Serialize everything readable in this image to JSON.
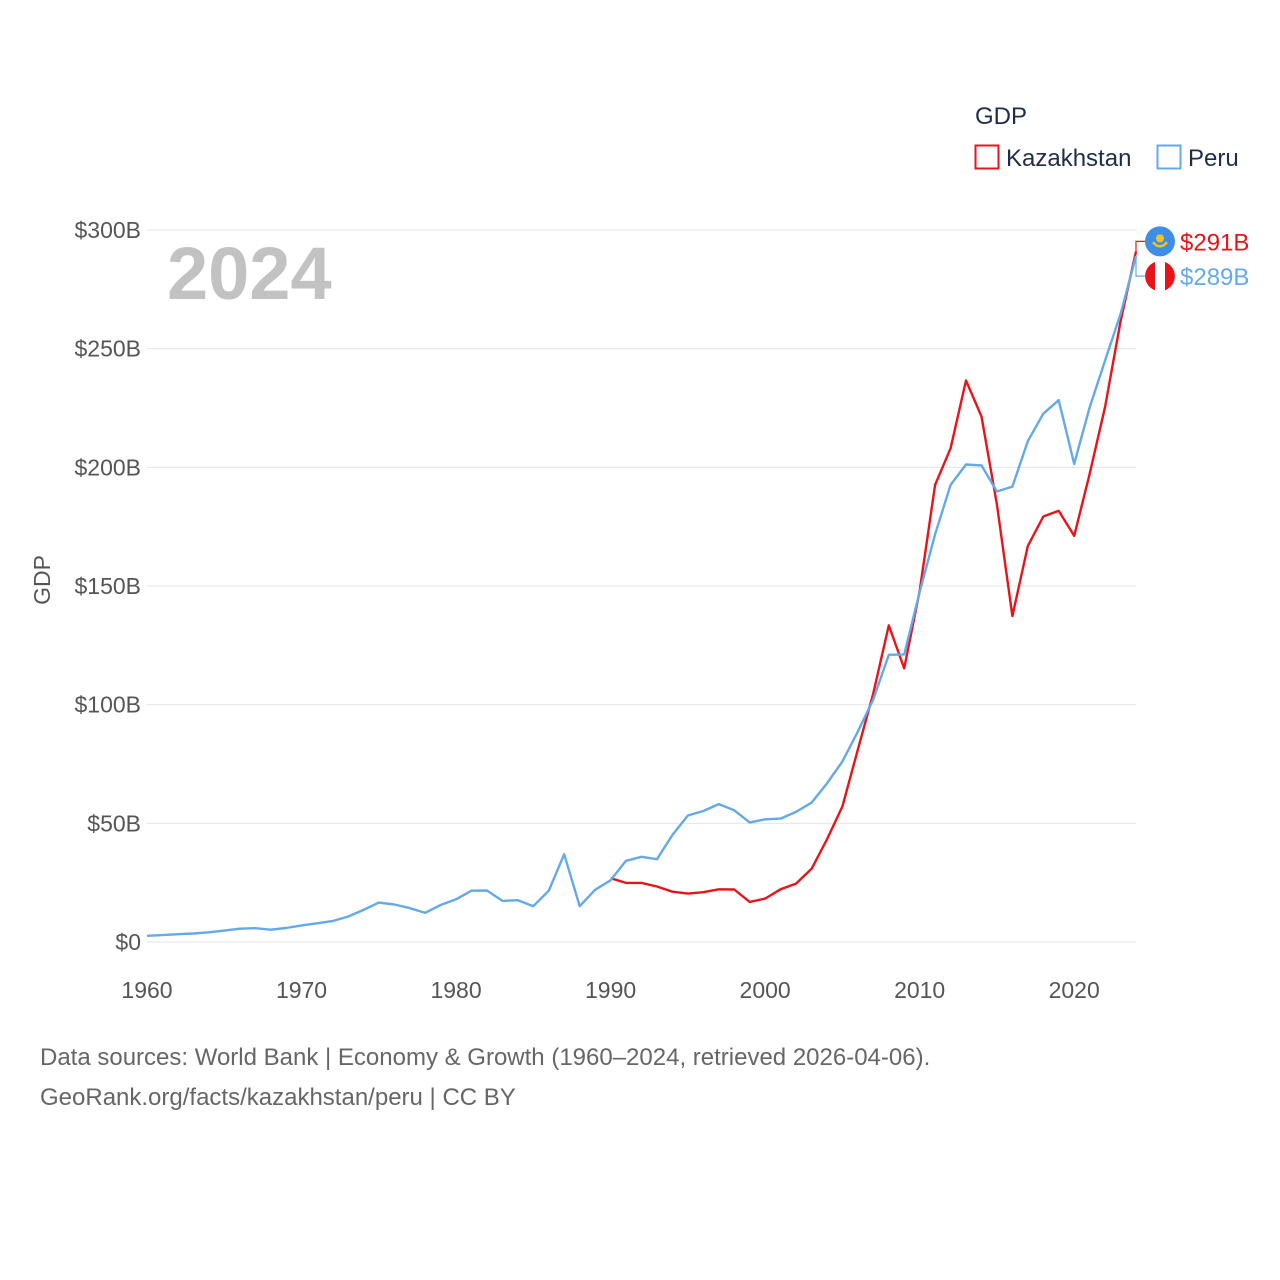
{
  "chart_data": {
    "type": "line",
    "title": "GDP",
    "year_label": "2024",
    "xlabel": "",
    "ylabel": "GDP",
    "xlim": [
      1960,
      2024
    ],
    "ylim": [
      0,
      300
    ],
    "x_ticks": [
      1960,
      1970,
      1980,
      1990,
      2000,
      2010,
      2020
    ],
    "x_tick_labels": [
      "1960",
      "1970",
      "1980",
      "1990",
      "2000",
      "2010",
      "2020"
    ],
    "y_ticks": [
      0,
      50,
      100,
      150,
      200,
      250,
      300
    ],
    "y_tick_labels": [
      "$0",
      "$50B",
      "$100B",
      "$150B",
      "$200B",
      "$250B",
      "$300B"
    ],
    "units": "billions of US dollars",
    "legend": {
      "title": "GDP",
      "position": "top-right"
    },
    "series": [
      {
        "name": "Kazakhstan",
        "color": "#e8141b",
        "end_label": "$291B",
        "x": [
          1990,
          1991,
          1992,
          1993,
          1994,
          1995,
          1996,
          1997,
          1998,
          1999,
          2000,
          2001,
          2002,
          2003,
          2004,
          2005,
          2006,
          2007,
          2008,
          2009,
          2010,
          2011,
          2012,
          2013,
          2014,
          2015,
          2016,
          2017,
          2018,
          2019,
          2020,
          2021,
          2022,
          2023,
          2024
        ],
        "values": [
          26.9,
          24.9,
          24.9,
          23.4,
          21.2,
          20.4,
          21.0,
          22.2,
          22.1,
          16.9,
          18.3,
          22.2,
          24.6,
          30.8,
          43.2,
          57.1,
          81.0,
          104.8,
          133.4,
          115.3,
          148.0,
          192.6,
          208.0,
          236.6,
          221.4,
          184.4,
          137.3,
          166.8,
          179.3,
          181.7,
          171.1,
          197.1,
          225.5,
          261.4,
          291.0
        ]
      },
      {
        "name": "Peru",
        "color": "#64a9e8",
        "end_label": "$289B",
        "x": [
          1960,
          1961,
          1962,
          1963,
          1964,
          1965,
          1966,
          1967,
          1968,
          1969,
          1970,
          1971,
          1972,
          1973,
          1974,
          1975,
          1976,
          1977,
          1978,
          1979,
          1980,
          1981,
          1982,
          1983,
          1984,
          1985,
          1986,
          1987,
          1988,
          1989,
          1990,
          1991,
          1992,
          1993,
          1994,
          1995,
          1996,
          1997,
          1998,
          1999,
          2000,
          2001,
          2002,
          2003,
          2004,
          2005,
          2006,
          2007,
          2008,
          2009,
          2010,
          2011,
          2012,
          2013,
          2014,
          2015,
          2016,
          2017,
          2018,
          2019,
          2020,
          2021,
          2022,
          2023,
          2024
        ],
        "values": [
          2.6,
          2.9,
          3.3,
          3.6,
          4.1,
          4.8,
          5.6,
          5.8,
          5.2,
          5.9,
          7.0,
          7.9,
          8.8,
          10.7,
          13.5,
          16.6,
          15.8,
          14.3,
          12.3,
          15.6,
          18.0,
          21.6,
          21.7,
          17.3,
          17.6,
          15.1,
          21.6,
          37.0,
          15.1,
          22.0,
          26.0,
          34.2,
          35.9,
          34.9,
          45.1,
          53.3,
          55.2,
          58.1,
          55.5,
          50.4,
          51.7,
          52.0,
          54.8,
          58.7,
          66.8,
          76.1,
          88.6,
          102.2,
          121.0,
          121.2,
          147.5,
          171.8,
          192.6,
          201.2,
          200.8,
          189.8,
          191.9,
          211.0,
          222.6,
          228.3,
          201.4,
          225.2,
          245.0,
          264.5,
          289.0
        ]
      }
    ]
  },
  "footer": {
    "line1": "Data sources: World Bank | Economy & Growth (1960–2024, retrieved 2026-04-06).",
    "line2": "GeoRank.org/facts/kazakhstan/peru | CC BY"
  },
  "flags": {
    "kazakhstan": {
      "bg": "#3d8fe6",
      "emblem": "#f4c21a"
    },
    "peru": {
      "side": "#e8141b",
      "center": "#ffffff"
    }
  }
}
